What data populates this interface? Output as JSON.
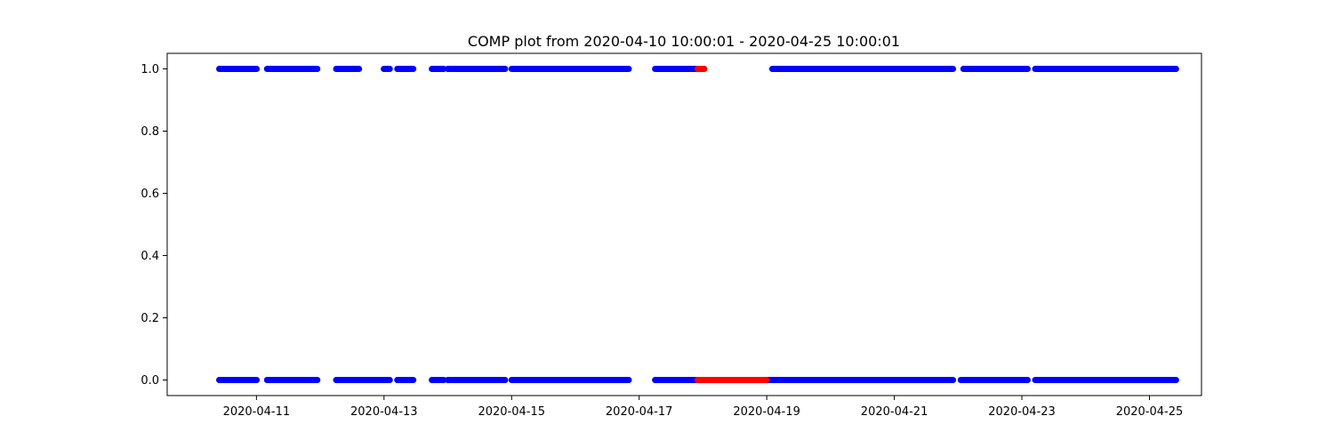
{
  "chart_data": {
    "type": "scatter",
    "title": "COMP plot from 2020-04-10 10:00:01 - 2020-04-25 10:00:01",
    "xlabel": "",
    "ylabel": "",
    "x_ticks": [
      "2020-04-11",
      "2020-04-13",
      "2020-04-15",
      "2020-04-17",
      "2020-04-19",
      "2020-04-21",
      "2020-04-23",
      "2020-04-25"
    ],
    "y_ticks": [
      "0.0",
      "0.2",
      "0.4",
      "0.6",
      "0.8",
      "1.0"
    ],
    "xlim": [
      "2020-04-09T14:25",
      "2020-04-25T19:35"
    ],
    "ylim": [
      -0.05,
      1.05
    ],
    "grid": false,
    "series": [
      {
        "color": "#0000ff",
        "value": 1.0,
        "ranges": [
          [
            "2020-04-10T10:00",
            "2020-04-11T00:05"
          ],
          [
            "2020-04-11T04:00",
            "2020-04-11T22:55"
          ],
          [
            "2020-04-12T06:00",
            "2020-04-12T14:35"
          ],
          [
            "2020-04-12T23:55",
            "2020-04-13T02:10"
          ],
          [
            "2020-04-13T05:00",
            "2020-04-13T11:00"
          ],
          [
            "2020-04-13T18:00",
            "2020-04-13T22:30"
          ],
          [
            "2020-04-14T00:00",
            "2020-04-14T01:20"
          ],
          [
            "2020-04-14T02:00",
            "2020-04-14T21:35"
          ],
          [
            "2020-04-15T00:00",
            "2020-04-15T20:45"
          ],
          [
            "2020-04-15T21:00",
            "2020-04-16T20:05"
          ],
          [
            "2020-04-17T06:00",
            "2020-04-17T22:00"
          ],
          [
            "2020-04-19T02:05",
            "2020-04-21T22:05"
          ],
          [
            "2020-04-22T02:00",
            "2020-04-23T02:10"
          ],
          [
            "2020-04-23T05:00",
            "2020-04-25T10:00"
          ]
        ]
      },
      {
        "color": "#ff0000",
        "value": 1.0,
        "ranges": [
          [
            "2020-04-17T22:00",
            "2020-04-18T00:30"
          ]
        ]
      },
      {
        "color": "#0000ff",
        "value": 0.0,
        "ranges": [
          [
            "2020-04-10T10:00",
            "2020-04-11T00:05"
          ],
          [
            "2020-04-11T04:00",
            "2020-04-11T22:55"
          ],
          [
            "2020-04-12T06:00",
            "2020-04-13T02:10"
          ],
          [
            "2020-04-13T05:00",
            "2020-04-13T11:00"
          ],
          [
            "2020-04-13T18:00",
            "2020-04-13T22:30"
          ],
          [
            "2020-04-14T00:00",
            "2020-04-14T01:20"
          ],
          [
            "2020-04-14T02:00",
            "2020-04-14T21:35"
          ],
          [
            "2020-04-15T00:00",
            "2020-04-15T20:45"
          ],
          [
            "2020-04-15T21:00",
            "2020-04-16T20:05"
          ],
          [
            "2020-04-17T06:00",
            "2020-04-17T22:00"
          ],
          [
            "2020-04-18T23:55",
            "2020-04-21T22:05"
          ],
          [
            "2020-04-22T01:00",
            "2020-04-23T02:10"
          ],
          [
            "2020-04-23T05:00",
            "2020-04-25T10:00"
          ]
        ]
      },
      {
        "color": "#ff0000",
        "value": 0.0,
        "ranges": [
          [
            "2020-04-17T22:00",
            "2020-04-18T23:55"
          ]
        ]
      }
    ]
  }
}
